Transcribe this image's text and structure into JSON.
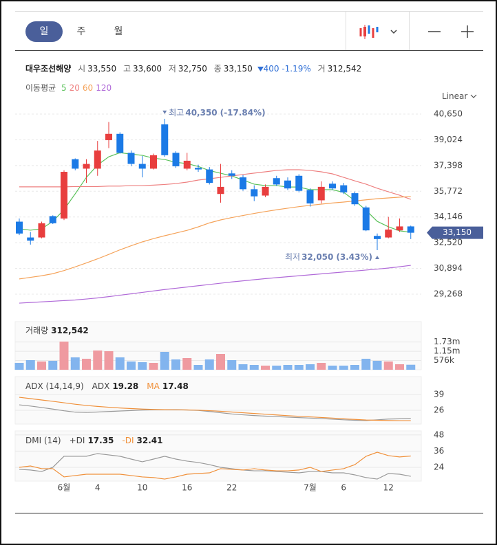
{
  "toolbar": {
    "periods": [
      "일",
      "주",
      "월"
    ]
  },
  "header": {
    "name": "대우조선해양",
    "fields": [
      {
        "label": "시",
        "value": "33,550"
      },
      {
        "label": "고",
        "value": "33,600"
      },
      {
        "label": "저",
        "value": "32,750"
      },
      {
        "label": "종",
        "value": "33,150"
      }
    ],
    "change": "400",
    "change_pct": "-1.19%",
    "volume": {
      "label": "거",
      "value": "312,542"
    }
  },
  "chart_data": [
    {
      "type": "candlestick",
      "ma_title": "이동평균",
      "scale": "Linear",
      "categories": [
        null,
        null,
        null,
        null,
        "6월",
        null,
        null,
        "4",
        null,
        null,
        null,
        "10",
        null,
        null,
        null,
        "16",
        null,
        null,
        null,
        "22",
        null,
        null,
        null,
        null,
        null,
        null,
        "7월",
        null,
        null,
        "6",
        null,
        null,
        null,
        "12",
        null,
        null
      ],
      "open": [
        33850,
        32850,
        32850,
        34200,
        34050,
        37800,
        37200,
        37200,
        39000,
        39400,
        38200,
        37500,
        37200,
        40000,
        38200,
        37200,
        37250,
        37150,
        35600,
        36900,
        36650,
        35900,
        35500,
        36600,
        36450,
        36750,
        35850,
        35200,
        36250,
        36150,
        35650,
        34750,
        32950,
        32850,
        33300,
        33550
      ],
      "high": [
        34050,
        33200,
        33850,
        34250,
        37100,
        37850,
        37800,
        38950,
        40150,
        39500,
        38350,
        38000,
        38150,
        40350,
        38300,
        38200,
        37450,
        37300,
        37500,
        37100,
        36800,
        36150,
        36200,
        36750,
        36650,
        36850,
        35950,
        36400,
        36400,
        36300,
        35750,
        34850,
        33100,
        34150,
        34050,
        33600
      ],
      "low": [
        33000,
        32400,
        32800,
        33700,
        33950,
        37100,
        36300,
        36750,
        38500,
        38150,
        37350,
        36650,
        37150,
        37950,
        37250,
        37100,
        37000,
        36200,
        35050,
        36550,
        35800,
        35150,
        35400,
        36100,
        35850,
        35700,
        34800,
        35000,
        35850,
        35600,
        34850,
        33250,
        32050,
        32800,
        33200,
        32750
      ],
      "close": [
        33100,
        32650,
        33750,
        33750,
        37000,
        37200,
        37500,
        38350,
        39400,
        38200,
        37500,
        37200,
        38050,
        38050,
        37350,
        37700,
        37150,
        36300,
        36050,
        36750,
        35900,
        35450,
        36050,
        36200,
        35950,
        35800,
        35000,
        36050,
        35950,
        35700,
        34950,
        33300,
        32750,
        33350,
        33550,
        33150
      ],
      "up_color": "#e83e3e",
      "down_color": "#1b7ae6",
      "series": [
        {
          "name": "5",
          "color": "#5cc25c",
          "values": [
            33400,
            33310,
            33400,
            33870,
            34610,
            35610,
            36650,
            37430,
            37950,
            38210,
            38120,
            38040,
            37860,
            37780,
            37600,
            37520,
            37340,
            37080,
            36910,
            36740,
            36480,
            36220,
            36130,
            36130,
            36040,
            36040,
            35870,
            35870,
            35870,
            35700,
            35180,
            34570,
            33870,
            33530,
            33270,
            33180
          ]
        },
        {
          "name": "20",
          "color": "#ee8080",
          "values": [
            36050,
            36050,
            36050,
            36050,
            36050,
            36070,
            36070,
            36070,
            36100,
            36100,
            36130,
            36130,
            36160,
            36200,
            36260,
            36350,
            36480,
            36560,
            36650,
            36740,
            36830,
            36920,
            37000,
            37090,
            37130,
            37130,
            37090,
            37000,
            36870,
            36650,
            36430,
            36220,
            35960,
            35740,
            35520,
            35260
          ]
        },
        {
          "name": "60",
          "color": "#f5a35a",
          "values": [
            30230,
            30330,
            30430,
            30560,
            30760,
            30990,
            31240,
            31500,
            31780,
            32070,
            32330,
            32570,
            32780,
            32960,
            33130,
            33300,
            33520,
            33770,
            33960,
            34110,
            34240,
            34370,
            34490,
            34600,
            34700,
            34800,
            34880,
            34960,
            35030,
            35090,
            35160,
            35230,
            35300,
            35350,
            35400,
            35440
          ]
        },
        {
          "name": "120",
          "color": "#b06ad8",
          "values": [
            28700,
            28740,
            28780,
            28820,
            28860,
            28900,
            28960,
            29030,
            29110,
            29200,
            29290,
            29380,
            29470,
            29560,
            29640,
            29720,
            29800,
            29880,
            29960,
            30040,
            30110,
            30180,
            30250,
            30310,
            30370,
            30430,
            30490,
            30550,
            30610,
            30670,
            30730,
            30790,
            30850,
            30920,
            31000,
            31090
          ]
        }
      ],
      "ylim": [
        28095,
        41345
      ],
      "yticks": [
        {
          "value": 40650,
          "label": "40,650"
        },
        {
          "value": 39024,
          "label": "39,024"
        },
        {
          "value": 37398,
          "label": "37,398"
        },
        {
          "value": 35772,
          "label": "35,772"
        },
        {
          "value": 34146,
          "label": "34,146"
        },
        {
          "value": 32520,
          "label": "32,520"
        },
        {
          "value": 30894,
          "label": "30,894"
        },
        {
          "value": 29268,
          "label": "29,268"
        }
      ],
      "grid": true,
      "annotations": [
        {
          "text": "최고",
          "value": 40350,
          "label": "40,350",
          "pct": "(-17.84%)"
        },
        {
          "text": "최저",
          "value": 32050,
          "label": "32,050",
          "pct": "(3.43%)"
        }
      ],
      "last_price": {
        "value": 33150,
        "label": "33,150",
        "color": "#4a5f9a"
      }
    },
    {
      "type": "bar",
      "title": "거래량",
      "current": "312,542",
      "up_color": "#ef9aa0",
      "down_color": "#82b4ee",
      "values": [
        428000,
        600000,
        514000,
        557000,
        1757000,
        771000,
        686000,
        1200000,
        1157000,
        771000,
        514000,
        471000,
        428000,
        1114000,
        643000,
        729000,
        300000,
        643000,
        986000,
        600000,
        343000,
        300000,
        257000,
        257000,
        300000,
        300000,
        343000,
        428000,
        257000,
        257000,
        300000,
        686000,
        557000,
        514000,
        343000,
        312542
      ],
      "ylim": [
        0,
        3000000
      ],
      "yticks": [
        {
          "value": 576000,
          "label": "576k"
        },
        {
          "value": 1150000,
          "label": "1.15m"
        },
        {
          "value": 1730000,
          "label": "1.73m"
        }
      ]
    },
    {
      "type": "line",
      "title": "ADX (14,14,9)",
      "series": [
        {
          "name": "ADX",
          "color": "#999999",
          "current": "19.28",
          "values": [
            30.5,
            29.5,
            28.3,
            27.0,
            25.6,
            24.5,
            24.3,
            24.6,
            25.0,
            25.4,
            25.8,
            26.2,
            26.4,
            26.5,
            26.5,
            26.3,
            25.9,
            25.0,
            24.0,
            23.0,
            22.3,
            21.7,
            21.2,
            20.8,
            20.4,
            20.0,
            19.6,
            19.2,
            18.7,
            18.2,
            17.8,
            17.6,
            18.2,
            18.8,
            19.0,
            19.28
          ]
        },
        {
          "name": "MA",
          "color": "#f0903a",
          "current": "17.48",
          "values": [
            36.7,
            35.6,
            34.5,
            33.4,
            32.2,
            31.0,
            30.0,
            29.2,
            28.5,
            27.9,
            27.4,
            27.0,
            26.7,
            26.5,
            26.4,
            26.3,
            26.1,
            25.7,
            25.2,
            24.6,
            24.0,
            23.4,
            22.8,
            22.2,
            21.6,
            21.1,
            20.6,
            20.1,
            19.6,
            19.0,
            18.5,
            18.0,
            17.8,
            17.6,
            17.5,
            17.48
          ]
        }
      ],
      "ylim": [
        14.7,
        53.7
      ],
      "yticks": [
        39,
        26
      ]
    },
    {
      "type": "line",
      "title": "DMI (14)",
      "series": [
        {
          "name": "+DI",
          "color": "#999999",
          "current": "17.35",
          "values": [
            22.5,
            22.0,
            20.9,
            24.0,
            32.2,
            32.2,
            32.2,
            34.2,
            33.2,
            32.2,
            30.1,
            28.1,
            30.1,
            32.2,
            30.1,
            28.6,
            27.6,
            26.0,
            24.0,
            23.0,
            22.0,
            21.4,
            21.4,
            20.9,
            20.4,
            19.9,
            20.9,
            20.9,
            19.9,
            19.9,
            18.4,
            16.4,
            15.3,
            19.4,
            18.9,
            17.35
          ]
        },
        {
          "name": "-DI",
          "color": "#f0903a",
          "current": "32.41",
          "values": [
            24.0,
            25.0,
            23.0,
            23.0,
            16.9,
            17.9,
            18.9,
            18.9,
            18.9,
            18.9,
            17.9,
            16.9,
            16.4,
            15.3,
            16.9,
            18.9,
            19.4,
            19.9,
            23.0,
            22.5,
            22.0,
            23.0,
            22.0,
            21.4,
            21.4,
            22.0,
            24.0,
            20.9,
            22.0,
            23.0,
            26.0,
            32.2,
            35.2,
            32.7,
            31.7,
            32.41
          ]
        }
      ],
      "ylim": [
        13.8,
        51
      ],
      "yticks": [
        48,
        36,
        24
      ]
    }
  ]
}
